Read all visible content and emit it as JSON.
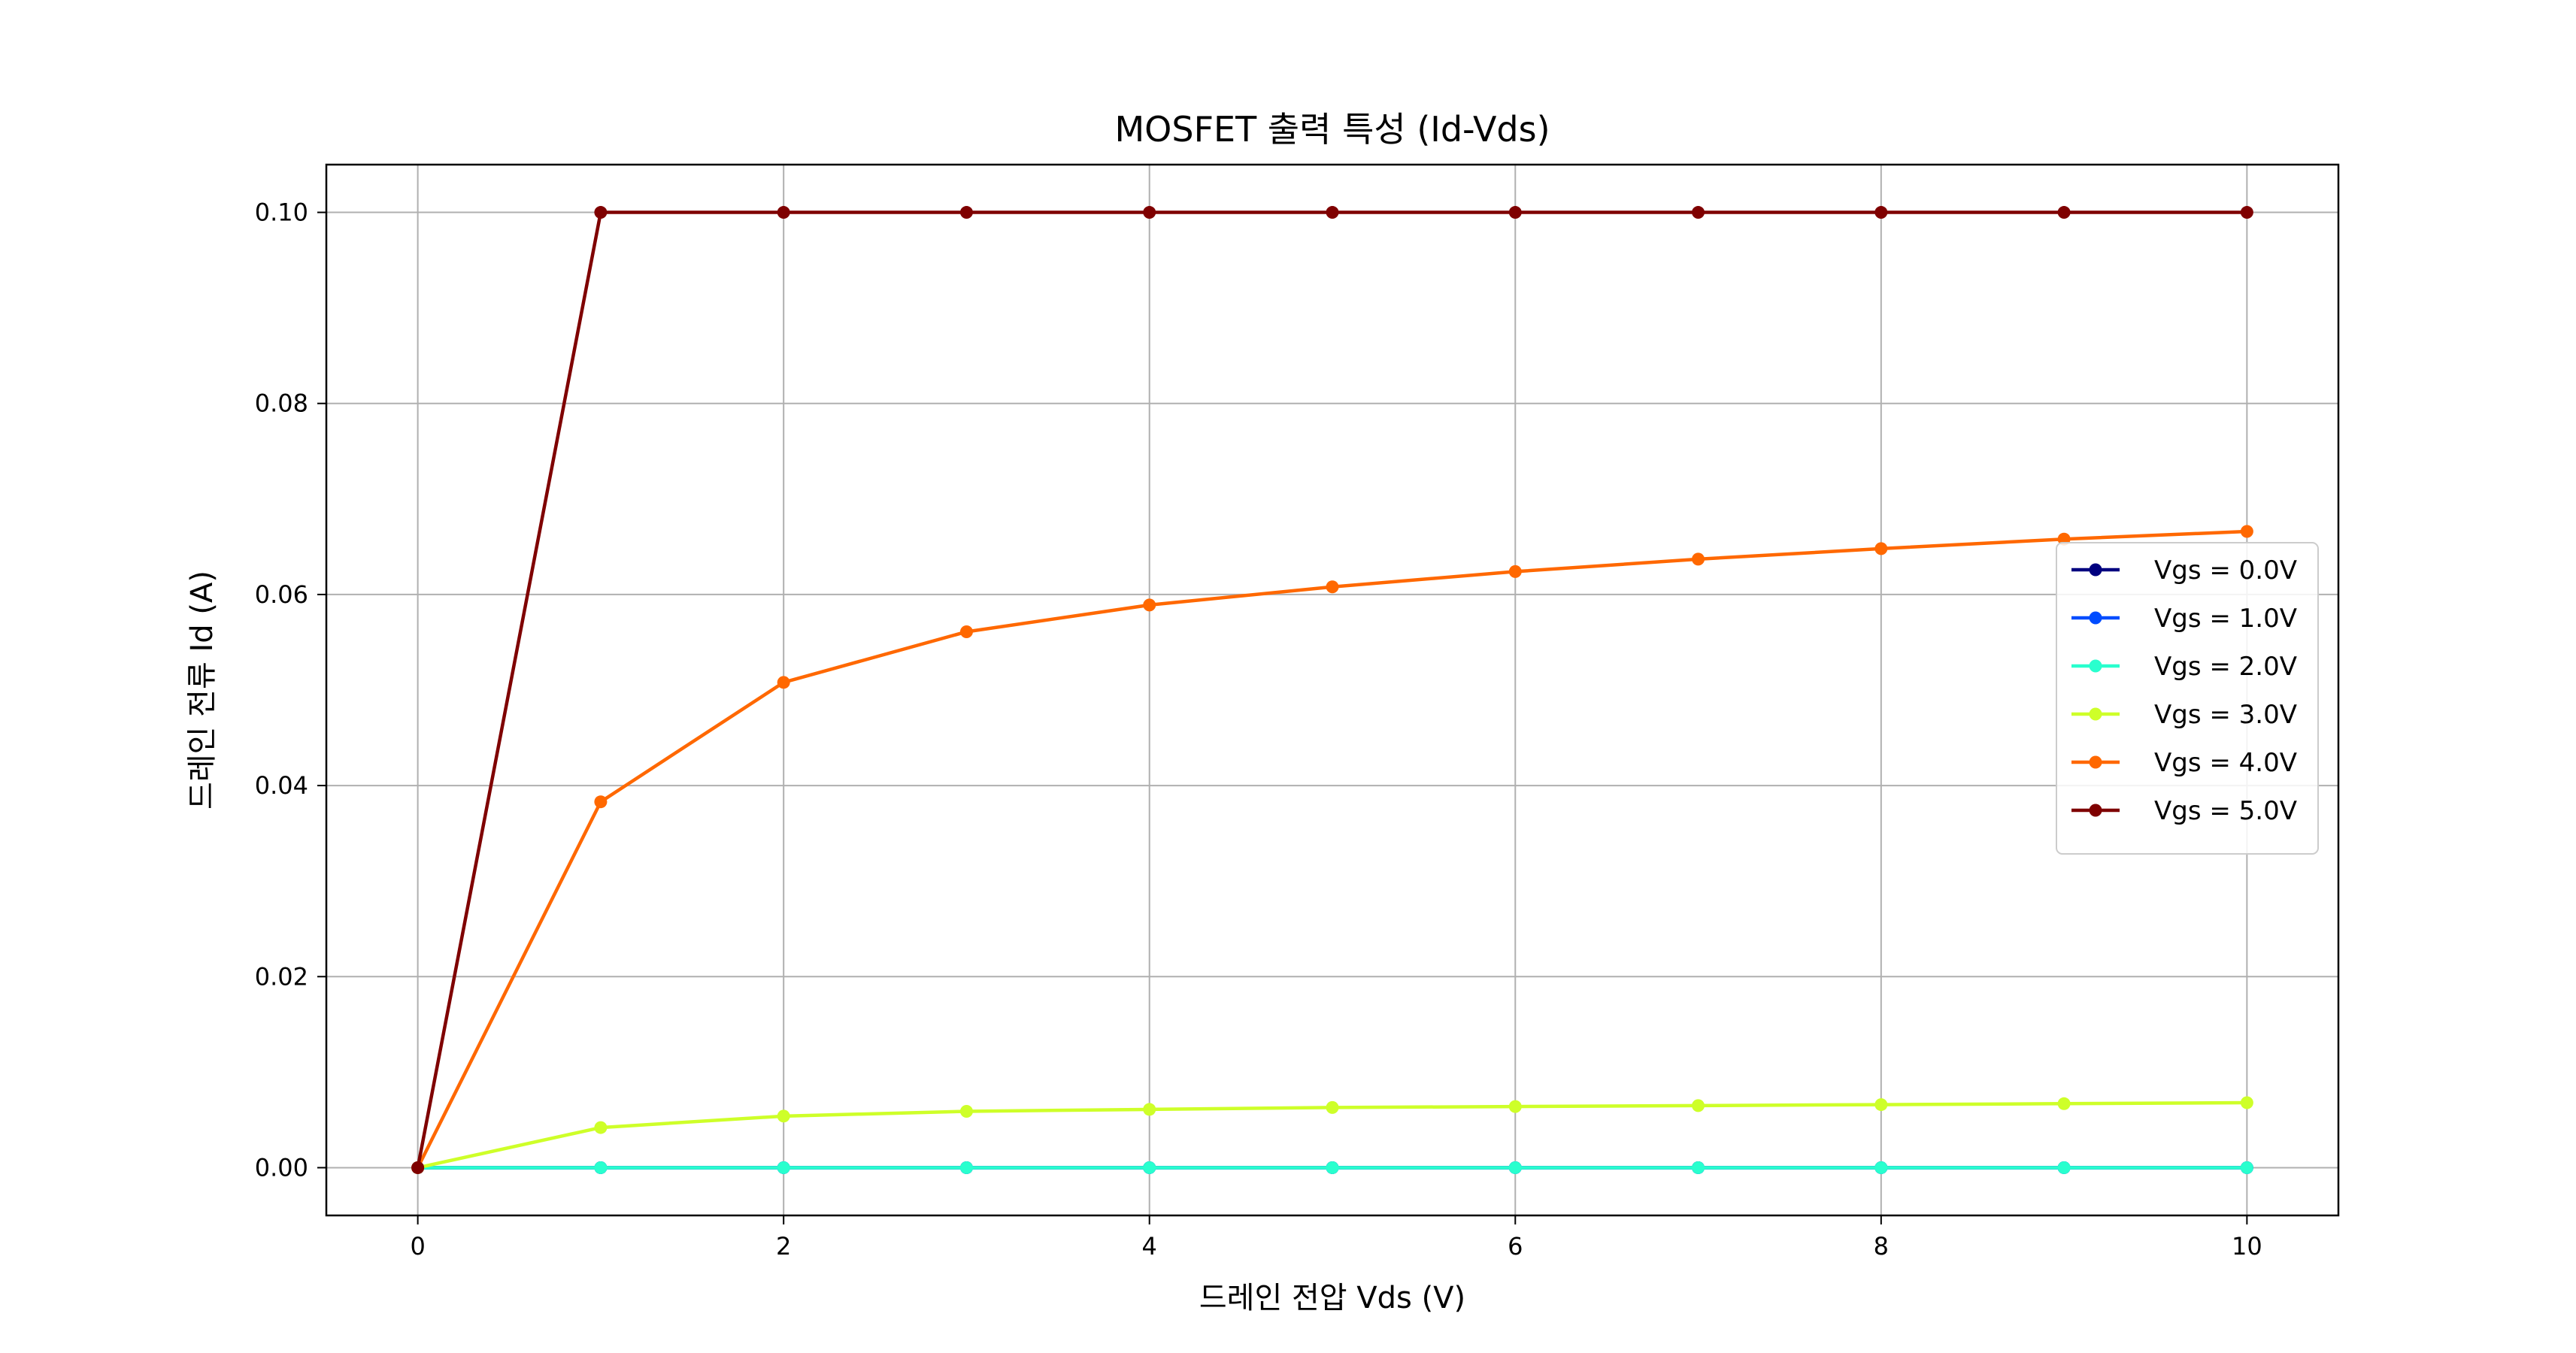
{
  "chart_data": {
    "type": "line",
    "title": "MOSFET 출력 특성 (Id-Vds)",
    "xlabel": "드레인 전압 Vds (V)",
    "ylabel": "드레인 전류 Id (A)",
    "xlim": [
      -0.5,
      10.5
    ],
    "ylim": [
      -0.005,
      0.105
    ],
    "xticks": [
      0,
      2,
      4,
      6,
      8,
      10
    ],
    "xtick_labels": [
      "0",
      "2",
      "4",
      "6",
      "8",
      "10"
    ],
    "yticks": [
      0.0,
      0.02,
      0.04,
      0.06,
      0.08,
      0.1
    ],
    "ytick_labels": [
      "0.00",
      "0.02",
      "0.04",
      "0.06",
      "0.08",
      "0.10"
    ],
    "grid": true,
    "legend_position": "center-right",
    "x": [
      0,
      1,
      2,
      3,
      4,
      5,
      6,
      7,
      8,
      9,
      10
    ],
    "series": [
      {
        "name": "Vgs = 0.0V",
        "color": "#00007f",
        "values": [
          0,
          0,
          0,
          0,
          0,
          0,
          0,
          0,
          0,
          0,
          0
        ]
      },
      {
        "name": "Vgs = 1.0V",
        "color": "#004cff",
        "values": [
          0,
          0,
          0,
          0,
          0,
          0,
          0,
          0,
          0,
          0,
          0
        ]
      },
      {
        "name": "Vgs = 2.0V",
        "color": "#29ffce",
        "values": [
          0,
          0,
          0,
          0,
          0,
          0,
          0,
          0,
          0,
          0,
          0
        ]
      },
      {
        "name": "Vgs = 3.0V",
        "color": "#ceff29",
        "values": [
          0,
          0.0042,
          0.0054,
          0.0059,
          0.0061,
          0.0063,
          0.0064,
          0.0065,
          0.0066,
          0.0067,
          0.0068
        ]
      },
      {
        "name": "Vgs = 4.0V",
        "color": "#ff6800",
        "values": [
          0,
          0.0383,
          0.0508,
          0.0561,
          0.0589,
          0.0608,
          0.0624,
          0.0637,
          0.0648,
          0.0658,
          0.0666
        ]
      },
      {
        "name": "Vgs = 5.0V",
        "color": "#7f0000",
        "values": [
          0,
          0.1,
          0.1,
          0.1,
          0.1,
          0.1,
          0.1,
          0.1,
          0.1,
          0.1,
          0.1
        ]
      }
    ]
  }
}
